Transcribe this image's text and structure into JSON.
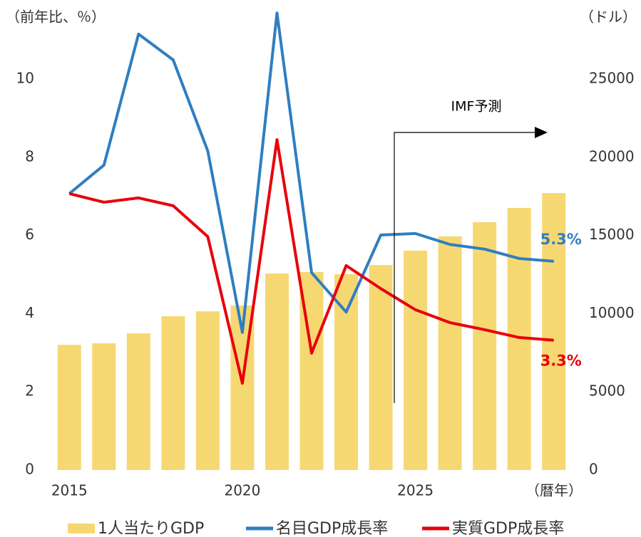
{
  "chart_data": {
    "type": "combo",
    "y_axis_label": "（前年比、％）",
    "y2_axis_label": "（ドル）",
    "x_axis_label": "（暦年）",
    "annotation": "IMF予測",
    "categories": [
      "2015",
      null,
      null,
      null,
      null,
      "2020",
      null,
      null,
      null,
      null,
      "2025",
      null,
      null,
      null,
      null
    ],
    "ylim": [
      0,
      12
    ],
    "yticks": [
      0,
      2,
      4,
      6,
      8,
      10
    ],
    "y2lim": [
      0,
      30000
    ],
    "y2ticks": [
      0,
      5000,
      10000,
      15000,
      20000,
      25000
    ],
    "grid": false,
    "legend": "bottom",
    "series": [
      {
        "name": "1人当たりGDP",
        "type": "bar",
        "axis": "y2",
        "color": "#f6d873",
        "values": [
          8000,
          8100,
          8740,
          9840,
          10150,
          10520,
          12570,
          12660,
          12520,
          13110,
          14030,
          14940,
          15850,
          16760,
          17710
        ]
      },
      {
        "name": "名目GDP成長率",
        "type": "line",
        "color": "#2f7ec1",
        "values": [
          7.07,
          7.8,
          11.15,
          10.49,
          8.16,
          3.52,
          11.69,
          5.05,
          4.04,
          6.01,
          6.05,
          5.77,
          5.65,
          5.41,
          5.34
        ],
        "value_labels": [
          null,
          null,
          null,
          null,
          null,
          null,
          null,
          null,
          null,
          null,
          null,
          null,
          null,
          null,
          "5.3%"
        ]
      },
      {
        "name": "実質GDP成長率",
        "type": "line",
        "color": "#e8000b",
        "values": [
          7.07,
          6.85,
          6.96,
          6.76,
          5.97,
          2.22,
          8.45,
          2.99,
          5.23,
          4.64,
          4.1,
          3.77,
          3.59,
          3.39,
          3.32
        ],
        "value_labels": [
          null,
          null,
          null,
          null,
          null,
          null,
          null,
          null,
          null,
          null,
          null,
          null,
          null,
          null,
          "3.3%"
        ]
      }
    ]
  }
}
